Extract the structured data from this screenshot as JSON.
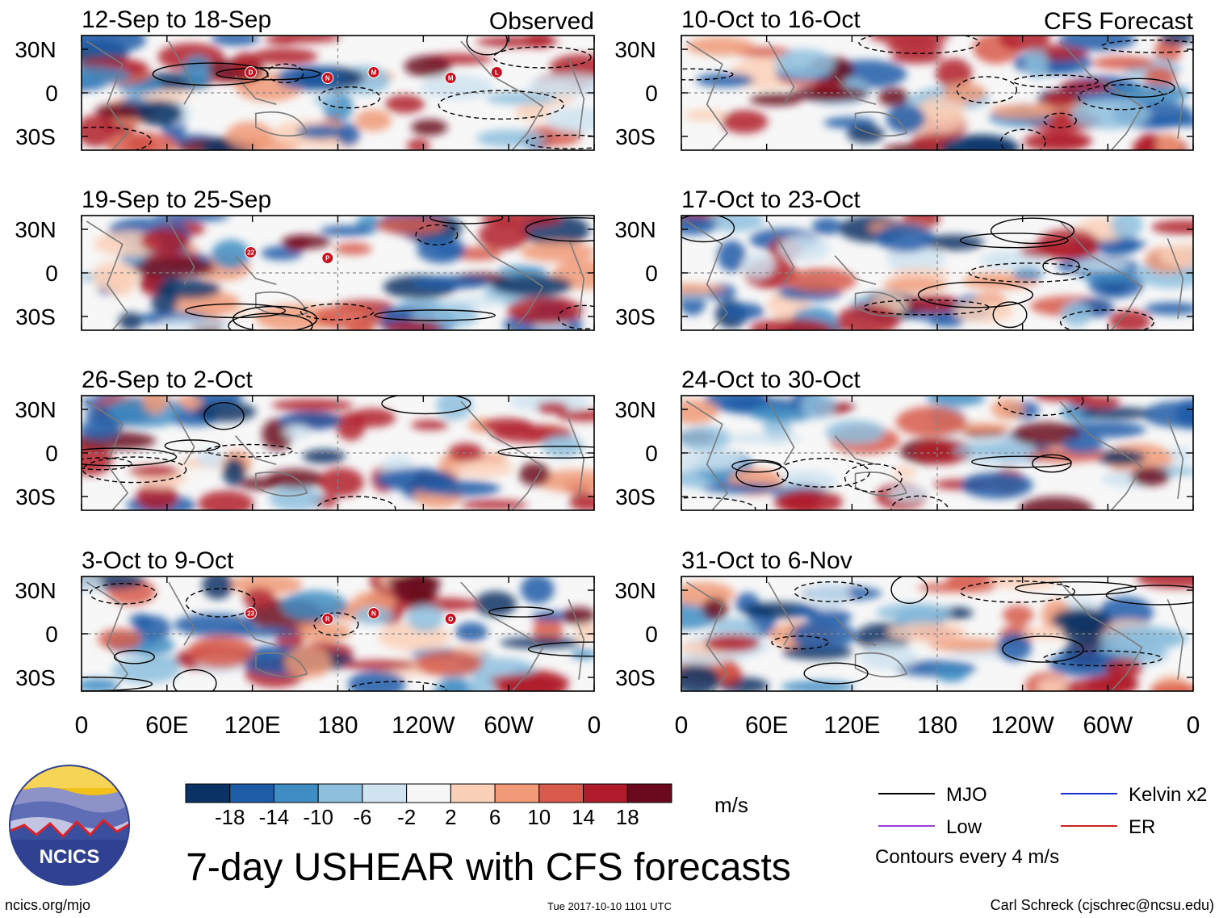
{
  "columns": {
    "left_label": "Observed",
    "right_label": "CFS Forecast"
  },
  "chart_data": {
    "type": "heatmap",
    "title": "7-day USHEAR with CFS forecasts",
    "units": "m/s",
    "lat_ticks": [
      "30N",
      "0",
      "30S"
    ],
    "lon_ticks": [
      "0",
      "60E",
      "120E",
      "180",
      "120W",
      "60W",
      "0"
    ],
    "panels": [
      {
        "label": "12-Sep to 18-Sep",
        "source": "Observed",
        "storms": [
          "D",
          "N",
          "M",
          "M",
          "L"
        ]
      },
      {
        "label": "19-Sep to 25-Sep",
        "source": "Observed",
        "storms": [
          "22",
          "P"
        ]
      },
      {
        "label": "26-Sep to 2-Oct",
        "source": "Observed",
        "storms": []
      },
      {
        "label": "3-Oct to 9-Oct",
        "source": "Observed",
        "storms": [
          "23",
          "R",
          "N",
          "O"
        ]
      },
      {
        "label": "10-Oct to 16-Oct",
        "source": "CFS Forecast",
        "storms": []
      },
      {
        "label": "17-Oct to 23-Oct",
        "source": "CFS Forecast",
        "storms": []
      },
      {
        "label": "24-Oct to 30-Oct",
        "source": "CFS Forecast",
        "storms": []
      },
      {
        "label": "31-Oct to 6-Nov",
        "source": "CFS Forecast",
        "storms": []
      }
    ],
    "colorbar": {
      "labels": [
        "-18",
        "-14",
        "-10",
        "-6",
        "-2",
        "2",
        "6",
        "10",
        "14",
        "18"
      ],
      "colors": [
        "#0b3264",
        "#1f5ca8",
        "#3f8dc3",
        "#8ec0de",
        "#cfe3f0",
        "#f7f7f7",
        "#fbd0b9",
        "#f09a77",
        "#d75a4a",
        "#b01c2c",
        "#6b0a1e"
      ]
    },
    "legend": [
      {
        "label": "MJO",
        "color": "#000000"
      },
      {
        "label": "Kelvin x2",
        "color": "#1430c8"
      },
      {
        "label": "Low",
        "color": "#9b3fd6"
      },
      {
        "label": "ER",
        "color": "#d42020"
      }
    ],
    "contour_note": "Contours every 4 m/s"
  },
  "footer": {
    "logo_text": "NCICS",
    "website": "ncics.org/mjo",
    "timestamp": "Tue 2017-10-10 1101 UTC",
    "credit": "Carl Schreck (cjschrec@ncsu.edu)"
  }
}
